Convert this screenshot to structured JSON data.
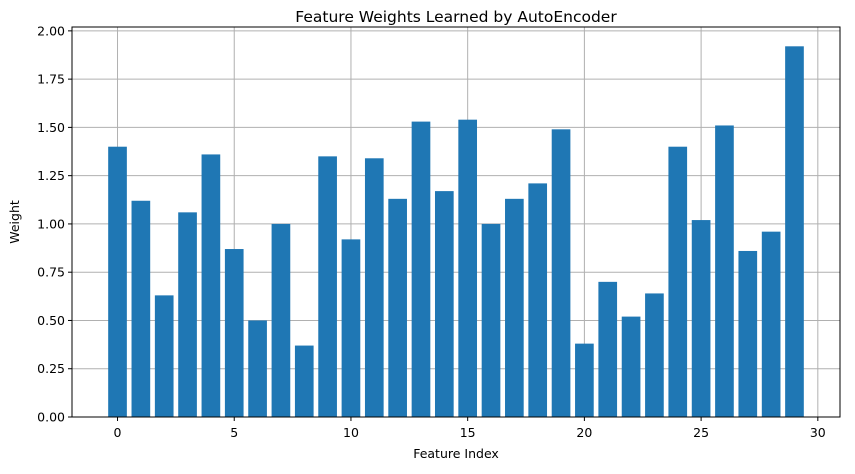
{
  "chart_data": {
    "type": "bar",
    "title": "Feature Weights Learned by AutoEncoder",
    "xlabel": "Feature Index",
    "ylabel": "Weight",
    "categories": [
      0,
      1,
      2,
      3,
      4,
      5,
      6,
      7,
      8,
      9,
      10,
      11,
      12,
      13,
      14,
      15,
      16,
      17,
      18,
      19,
      20,
      21,
      22,
      23,
      24,
      25,
      26,
      27,
      28,
      29
    ],
    "values": [
      1.4,
      1.12,
      0.63,
      1.06,
      1.36,
      0.87,
      0.5,
      1.0,
      0.37,
      1.35,
      0.92,
      1.34,
      1.13,
      1.53,
      1.17,
      1.54,
      1.0,
      1.13,
      1.21,
      1.49,
      0.38,
      0.7,
      0.52,
      0.64,
      1.4,
      1.02,
      1.51,
      0.86,
      0.96,
      1.92
    ],
    "xlim": [
      -1.95,
      30.95
    ],
    "ylim": [
      0,
      2.02
    ],
    "xticks": [
      0,
      5,
      10,
      15,
      20,
      25,
      30
    ],
    "xtick_labels": [
      "0",
      "5",
      "10",
      "15",
      "20",
      "25",
      "30"
    ],
    "yticks": [
      0,
      0.25,
      0.5,
      0.75,
      1.0,
      1.25,
      1.5,
      1.75,
      2.0
    ],
    "ytick_labels": [
      "0.00",
      "0.25",
      "0.50",
      "0.75",
      "1.00",
      "1.25",
      "1.50",
      "1.75",
      "2.00"
    ],
    "bar_color": "#1f77b4",
    "grid_color": "#b0b0b0",
    "grid": true
  }
}
